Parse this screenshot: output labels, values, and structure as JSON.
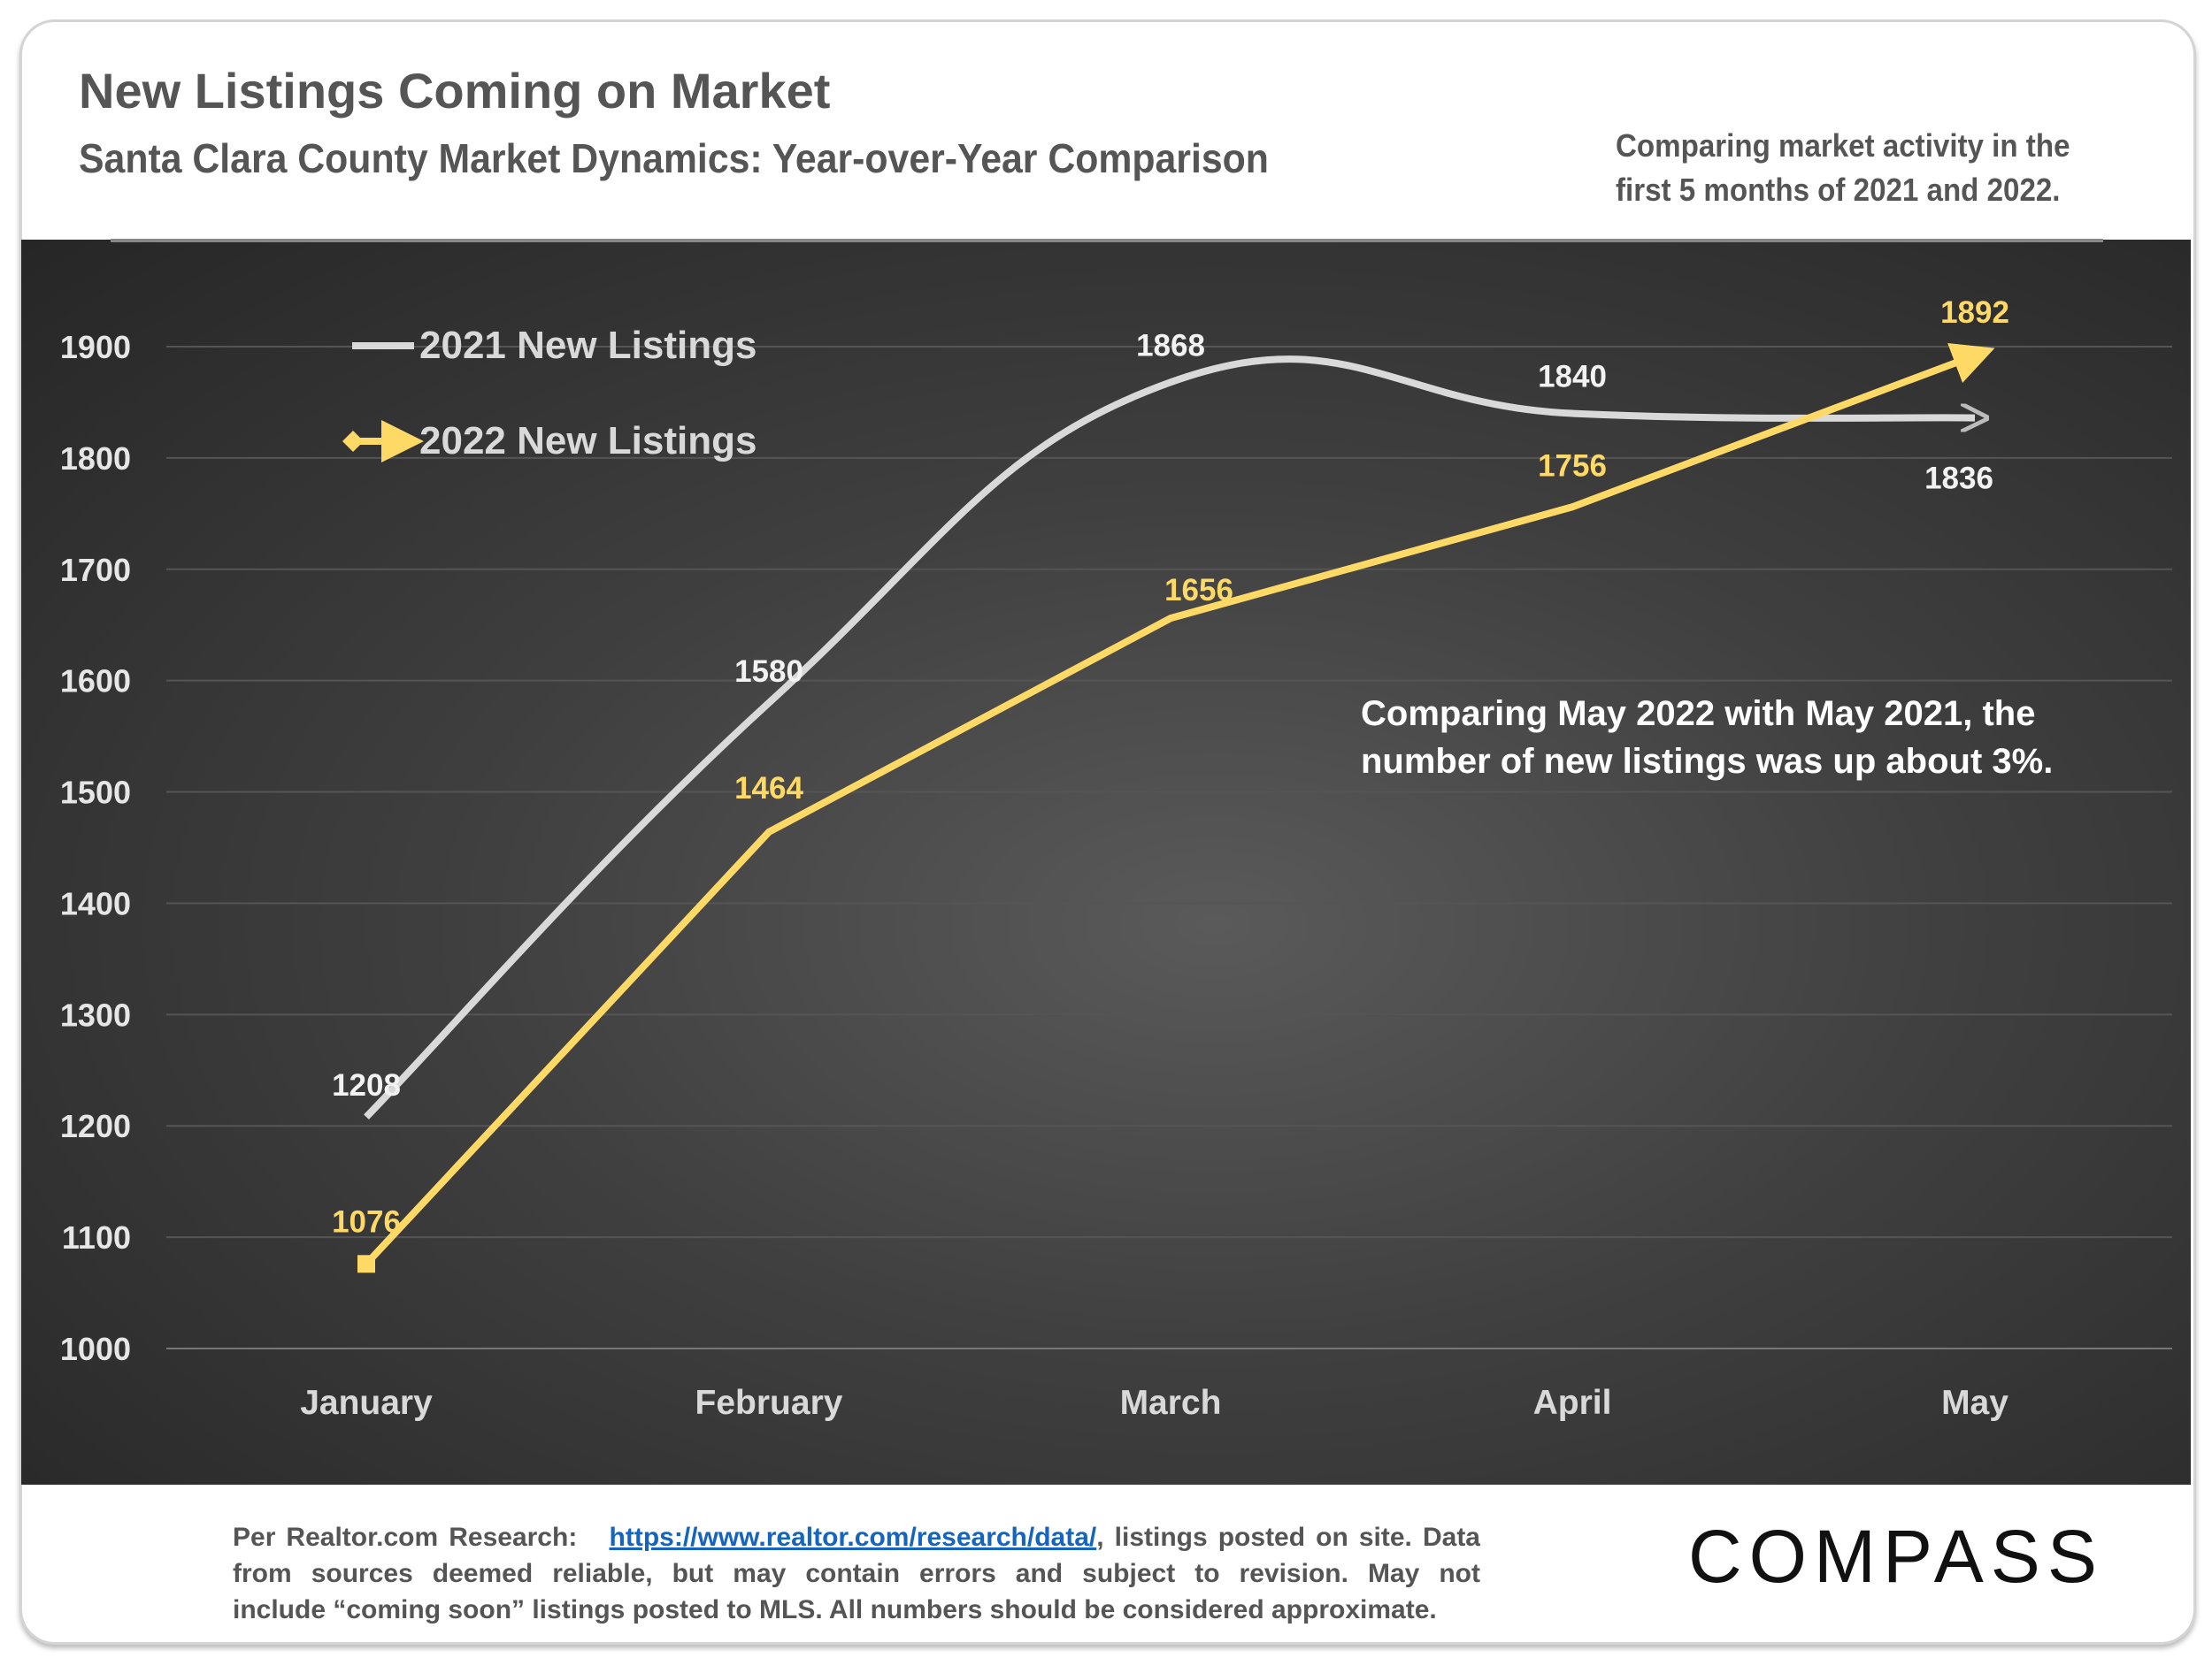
{
  "header": {
    "title": "New Listings Coming on Market",
    "subtitle": "Santa Clara County Market Dynamics: Year-over-Year Comparison",
    "note_line1": "Comparing market activity in the",
    "note_line2": "first 5 months of 2021 and 2022."
  },
  "footer": {
    "prefix": "Per Realtor.com Research:",
    "link": "https://www.realtor.com/research/data/",
    "line1_suffix": ", listings posted on site.",
    "line2": "Data from sources deemed reliable, but may contain errors and subject to revision. May not",
    "line3": "include “coming soon” listings posted to MLS. All numbers should be considered approximate."
  },
  "logo": "COMPASS",
  "chart_data": {
    "type": "line",
    "categories": [
      "January",
      "February",
      "March",
      "April",
      "May"
    ],
    "series": [
      {
        "name": "2021 New Listings",
        "values": [
          1208,
          1580,
          1868,
          1840,
          1836
        ],
        "color": "#d9d9d9",
        "smooth": true
      },
      {
        "name": "2022 New Listings",
        "values": [
          1076,
          1464,
          1656,
          1756,
          1892
        ],
        "color": "#ffd966",
        "smooth": false
      }
    ],
    "ylim": [
      1000,
      1900
    ],
    "yticks": [
      1000,
      1100,
      1200,
      1300,
      1400,
      1500,
      1600,
      1700,
      1800,
      1900
    ],
    "grid": true,
    "legend_position": "top-left",
    "annotation_line1": "Comparing May 2022 with May 2021, the",
    "annotation_line2": "number of new listings was up about 3%."
  }
}
